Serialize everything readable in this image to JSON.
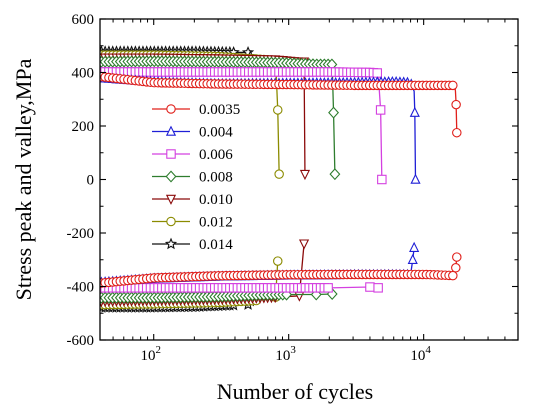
{
  "chart_data": {
    "type": "line",
    "xlabel": "Number of cycles",
    "ylabel": "Stress peak and valley,MPa",
    "xscale": "log",
    "xlim": [
      40,
      50000
    ],
    "ylim": [
      -600,
      600
    ],
    "yticks": [
      -600,
      -400,
      -200,
      0,
      200,
      400,
      600
    ],
    "xticks": [
      {
        "value": 100,
        "base": "10",
        "exp": "2"
      },
      {
        "value": 1000,
        "base": "10",
        "exp": "3"
      },
      {
        "value": 10000,
        "base": "10",
        "exp": "4"
      }
    ],
    "legend_position": "center-left",
    "grid": false,
    "series": [
      {
        "name": "0.0035",
        "color": "#e0201b",
        "marker": "circle",
        "peak": [
          [
            40,
            385
          ],
          [
            100,
            362
          ],
          [
            300,
            357
          ],
          [
            1000,
            355
          ],
          [
            3000,
            352
          ],
          [
            10000,
            352
          ],
          [
            15000,
            352
          ],
          [
            17000,
            352
          ],
          [
            17200,
            330
          ],
          [
            17400,
            280
          ],
          [
            17600,
            175
          ]
        ],
        "valley": [
          [
            40,
            -388
          ],
          [
            100,
            -368
          ],
          [
            300,
            -360
          ],
          [
            1000,
            -356
          ],
          [
            3000,
            -355
          ],
          [
            10000,
            -355
          ],
          [
            15000,
            -358
          ],
          [
            17000,
            -360
          ],
          [
            17300,
            -330
          ],
          [
            17600,
            -290
          ]
        ]
      },
      {
        "name": "0.004",
        "color": "#1f1fd6",
        "marker": "triangle-up",
        "peak": [
          [
            40,
            380
          ],
          [
            100,
            365
          ],
          [
            300,
            358
          ],
          [
            1000,
            360
          ],
          [
            3000,
            362
          ],
          [
            6000,
            365
          ],
          [
            8000,
            362
          ],
          [
            8500,
            330
          ],
          [
            8600,
            250
          ],
          [
            8700,
            0
          ]
        ],
        "valley": [
          [
            40,
            -385
          ],
          [
            100,
            -370
          ],
          [
            300,
            -362
          ],
          [
            1000,
            -358
          ],
          [
            3000,
            -356
          ],
          [
            6000,
            -356
          ],
          [
            8000,
            -356
          ],
          [
            8300,
            -300
          ],
          [
            8500,
            -255
          ]
        ]
      },
      {
        "name": "0.006",
        "color": "#d440e0",
        "marker": "square",
        "peak": [
          [
            40,
            402
          ],
          [
            100,
            402
          ],
          [
            300,
            402
          ],
          [
            1000,
            402
          ],
          [
            2000,
            402
          ],
          [
            4000,
            400
          ],
          [
            4600,
            398
          ],
          [
            4800,
            260
          ],
          [
            4900,
            0
          ]
        ],
        "valley": [
          [
            40,
            -405
          ],
          [
            100,
            -405
          ],
          [
            300,
            -405
          ],
          [
            1000,
            -405
          ],
          [
            2000,
            -405
          ],
          [
            4000,
            -402
          ],
          [
            4600,
            -405
          ]
        ]
      },
      {
        "name": "0.008",
        "color": "#2e7d2e",
        "marker": "diamond",
        "peak": [
          [
            40,
            440
          ],
          [
            100,
            442
          ],
          [
            300,
            440
          ],
          [
            600,
            438
          ],
          [
            1000,
            435
          ],
          [
            1600,
            430
          ],
          [
            2100,
            430
          ],
          [
            2150,
            250
          ],
          [
            2200,
            20
          ]
        ],
        "valley": [
          [
            40,
            -442
          ],
          [
            100,
            -442
          ],
          [
            300,
            -438
          ],
          [
            600,
            -432
          ],
          [
            1000,
            -430
          ],
          [
            1600,
            -430
          ],
          [
            2100,
            -428
          ]
        ]
      },
      {
        "name": "0.010",
        "color": "#8b0a0a",
        "marker": "triangle-down",
        "peak": [
          [
            40,
            455
          ],
          [
            100,
            455
          ],
          [
            300,
            452
          ],
          [
            800,
            448
          ],
          [
            1200,
            440
          ],
          [
            1300,
            440
          ],
          [
            1320,
            20
          ]
        ],
        "valley": [
          [
            40,
            -455
          ],
          [
            100,
            -452
          ],
          [
            300,
            -448
          ],
          [
            800,
            -440
          ],
          [
            1200,
            -435
          ],
          [
            1300,
            -240
          ]
        ]
      },
      {
        "name": "0.012",
        "color": "#8b8b00",
        "marker": "circle",
        "peak": [
          [
            40,
            465
          ],
          [
            100,
            465
          ],
          [
            300,
            460
          ],
          [
            600,
            450
          ],
          [
            800,
            445
          ],
          [
            830,
            260
          ],
          [
            850,
            20
          ]
        ],
        "valley": [
          [
            40,
            -468
          ],
          [
            100,
            -465
          ],
          [
            300,
            -460
          ],
          [
            600,
            -452
          ],
          [
            800,
            -440
          ],
          [
            830,
            -305
          ]
        ]
      },
      {
        "name": "0.014",
        "color": "#111111",
        "marker": "star",
        "peak": [
          [
            40,
            478
          ],
          [
            100,
            478
          ],
          [
            200,
            478
          ],
          [
            400,
            475
          ],
          [
            500,
            475
          ],
          [
            520,
            460
          ]
        ],
        "valley": [
          [
            40,
            -478
          ],
          [
            100,
            -478
          ],
          [
            200,
            -476
          ],
          [
            400,
            -470
          ],
          [
            500,
            -468
          ],
          [
            520,
            -455
          ]
        ]
      }
    ]
  }
}
